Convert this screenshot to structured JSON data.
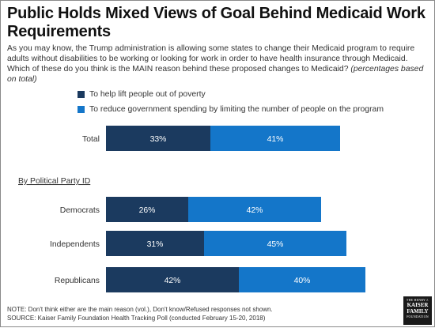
{
  "title": "Public Holds Mixed Views of Goal Behind Medicaid Work Requirements",
  "subtitle": {
    "text": "As you may know, the Trump administration is allowing some states to change their Medicaid program to require adults without disabilities to be working or looking for work in order to have health insurance through Medicaid. Which of these do you think is the MAIN reason behind these proposed changes to Medicaid?",
    "italic": "(percentages based on total)"
  },
  "colors": {
    "dark": "#1b3a5f",
    "light": "#1476c9"
  },
  "chart_data": {
    "type": "bar",
    "orientation": "horizontal",
    "stacked": true,
    "categories": [
      "Total",
      "Democrats",
      "Independents",
      "Republicans"
    ],
    "group_label": "By Political Party ID",
    "series": [
      {
        "name": "To help lift people out of poverty",
        "values": [
          33,
          26,
          31,
          42
        ],
        "labels": [
          "33%",
          "26%",
          "31%",
          "42%"
        ],
        "color": "#1b3a5f"
      },
      {
        "name": "To reduce government spending by limiting the number of people on the program",
        "values": [
          41,
          42,
          45,
          40
        ],
        "labels": [
          "41%",
          "42%",
          "45%",
          "40%"
        ],
        "color": "#1476c9"
      }
    ],
    "xlim": [
      0,
      100
    ],
    "grid": false,
    "legend_position": "top-left"
  },
  "note": "NOTE: Don't think either are the main reason (vol.), Don't know/Refused responses not shown.",
  "source": "SOURCE: Kaiser Family Foundation Health Tracking Poll (conducted February 15-20, 2018)",
  "logo": {
    "line1": "THE HENRY J.",
    "line2a": "KAISER",
    "line2b": "FAMILY",
    "line3": "FOUNDATION"
  }
}
